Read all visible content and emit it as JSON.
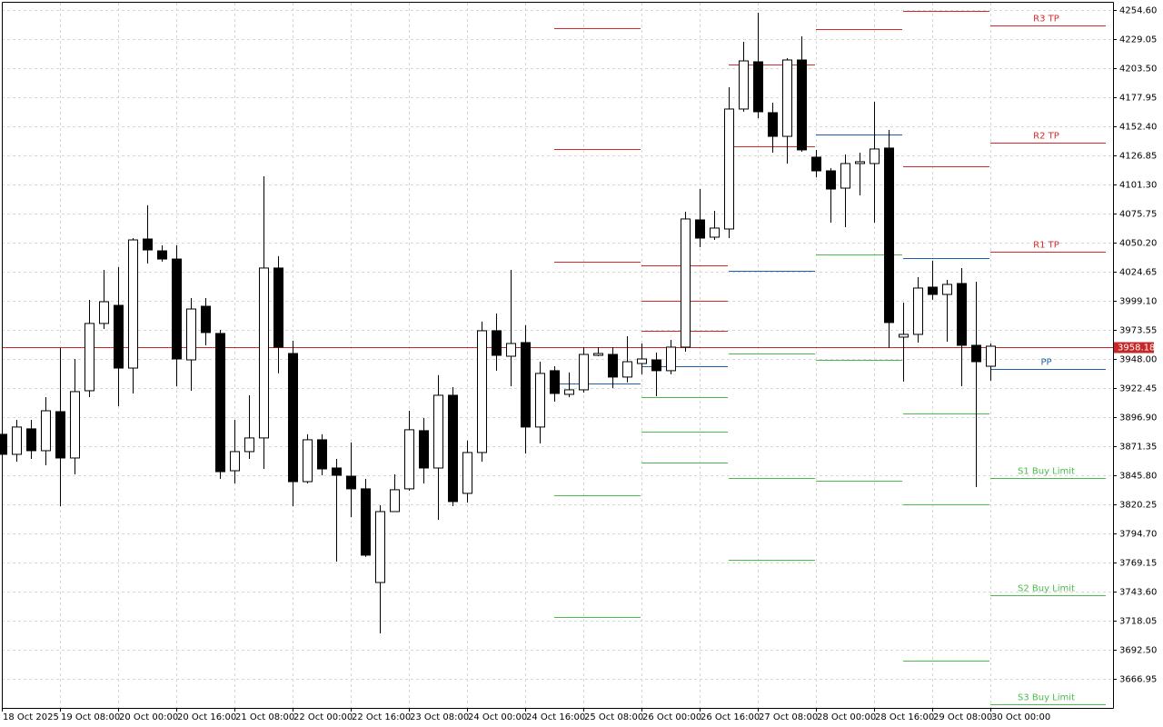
{
  "chart_data": {
    "type": "candlestick",
    "categories": [
      "18 Oct 2025",
      null,
      null,
      null,
      "19 Oct 08:00",
      null,
      null,
      null,
      "20 Oct 00:00",
      null,
      null,
      null,
      "20 Oct 16:00",
      null,
      null,
      null,
      "21 Oct 08:00",
      null,
      null,
      null,
      "22 Oct 00:00",
      null,
      null,
      null,
      "22 Oct 16:00",
      null,
      null,
      null,
      "23 Oct 08:00",
      null,
      null,
      null,
      "24 Oct 00:00",
      null,
      null,
      null,
      "24 Oct 16:00",
      null,
      null,
      null,
      "25 Oct 08:00",
      null,
      null,
      null,
      "26 Oct 00:00",
      null,
      null,
      null,
      "26 Oct 16:00",
      null,
      null,
      null,
      "27 Oct 08:00",
      null,
      null,
      null,
      "28 Oct 00:00",
      null,
      null,
      null,
      "28 Oct 16:00",
      null,
      null,
      null,
      "29 Oct 08:00",
      null,
      null,
      null,
      "30 Oct 00:00"
    ],
    "open": [
      3881.8,
      3864.2,
      3886.6,
      3867.4,
      3901.7,
      3861.0,
      3920.1,
      3979.2,
      3995.1,
      3940.0,
      4053.4,
      4043.0,
      4035.8,
      3947.2,
      3994.3,
      3970.4,
      3849.8,
      3866.6,
      3878.6,
      4027.9,
      3952.8,
      3840.2,
      3877.0,
      3852.2,
      3845.0,
      3833.9,
      3751.6,
      3813.9,
      3833.9,
      3885.0,
      3852.2,
      3916.1,
      3829.9,
      3865.8,
      3972.8,
      3950.4,
      3962.4,
      3888.2,
      3937.7,
      3916.9,
      3920.9,
      3951.2,
      3952.0,
      3932.1,
      3944.0,
      3947.2,
      3937.7,
      3958.4,
      4070.2,
      4055.0,
      4062.2,
      4167.6,
      4209.1,
      4164.4,
      4143.6,
      4210.7,
      4125.3,
      4113.3,
      4098.1,
      4119.7,
      4119.7,
      4133.3,
      3967.2,
      3969.6,
      4011.1,
      4004.7,
      4014.3,
      3960.0,
      3941.6
    ],
    "high": [
      3883.4,
      3894.5,
      3894.5,
      3914.5,
      3957.6,
      3948.0,
      3999.9,
      4026.3,
      4028.7,
      4054.2,
      4083.0,
      4047.8,
      4047.8,
      4001.5,
      4001.5,
      3973.6,
      3894.5,
      3916.1,
      4108.5,
      4038.3,
      3964.0,
      3881.8,
      3881.8,
      3860.2,
      3874.6,
      3842.6,
      3819.5,
      3846.6,
      3902.5,
      3896.1,
      3933.7,
      3923.3,
      3876.2,
      3980.8,
      3987.9,
      4026.3,
      3977.6,
      3945.6,
      3941.6,
      3936.1,
      3958.4,
      3958.4,
      3958.4,
      3968.0,
      3961.6,
      3953.6,
      3964.8,
      4077.4,
      4097.3,
      4078.2,
      4186.7,
      4226.7,
      4252.2,
      4173.2,
      4212.3,
      4231.5,
      4131.7,
      4115.7,
      4127.7,
      4129.3,
      4174.0,
      4149.2,
      3997.5,
      4019.9,
      4034.2,
      4017.5,
      4027.9,
      4015.9,
      3961.6
    ],
    "low": [
      3862.6,
      3857.8,
      3860.2,
      3854.6,
      3818.7,
      3846.6,
      3914.5,
      3974.4,
      3906.5,
      3917.7,
      4031.9,
      4033.5,
      3924.1,
      3920.1,
      3960.0,
      3842.6,
      3838.6,
      3860.2,
      3851.4,
      3935.3,
      3818.7,
      3838.6,
      3845.8,
      3770.0,
      3809.1,
      3774.0,
      3706.9,
      3813.9,
      3832.3,
      3838.6,
      3806.7,
      3818.7,
      3821.9,
      3857.8,
      3937.7,
      3924.1,
      3865.0,
      3873.8,
      3910.5,
      3914.5,
      3918.5,
      3950.4,
      3922.5,
      3927.3,
      3934.5,
      3915.3,
      3934.5,
      3954.4,
      4046.2,
      4052.6,
      4054.2,
      4165.2,
      4159.6,
      4129.3,
      4119.7,
      4130.1,
      4107.7,
      4067.8,
      4063.8,
      4091.7,
      4067.8,
      3957.6,
      3928.1,
      3962.4,
      3999.9,
      3963.2,
      3924.1,
      3835.5,
      3928.9
    ],
    "close": [
      3864.2,
      3888.2,
      3867.4,
      3902.5,
      3861.0,
      3919.3,
      3979.2,
      3998.3,
      3940.0,
      4052.6,
      4043.8,
      4035.8,
      3948.0,
      3991.9,
      3971.2,
      3849.0,
      3866.6,
      3878.6,
      4027.9,
      3958.4,
      3840.2,
      3877.0,
      3851.4,
      3845.8,
      3833.9,
      3775.6,
      3813.9,
      3833.1,
      3885.8,
      3852.2,
      3916.1,
      3822.7,
      3865.8,
      3972.8,
      3951.2,
      3961.6,
      3888.2,
      3935.3,
      3917.7,
      3920.9,
      3952.0,
      3952.8,
      3932.1,
      3945.6,
      3948.0,
      3937.7,
      3958.4,
      4071.0,
      4054.2,
      4063.0,
      4167.6,
      4209.9,
      4165.2,
      4143.6,
      4210.7,
      4131.7,
      4113.3,
      4097.3,
      4119.7,
      4121.3,
      4132.5,
      3980.0,
      3969.6,
      4010.3,
      4004.7,
      4013.5,
      3960.0,
      3945.6,
      3959.2
    ],
    "up_color": "#ffffff",
    "down_color": "#000000",
    "ylim": [
      3641.4,
      4261.0
    ],
    "yticks": [
      {
        "value": 4254.6,
        "label": "4254.60"
      },
      {
        "value": 4229.05,
        "label": "4229.05"
      },
      {
        "value": 4203.5,
        "label": "4203.50"
      },
      {
        "value": 4177.95,
        "label": "4177.95"
      },
      {
        "value": 4152.4,
        "label": "4152.40"
      },
      {
        "value": 4126.85,
        "label": "4126.85"
      },
      {
        "value": 4101.3,
        "label": "4101.30"
      },
      {
        "value": 4075.75,
        "label": "4075.75"
      },
      {
        "value": 4050.2,
        "label": "4050.20"
      },
      {
        "value": 4024.65,
        "label": "4024.65"
      },
      {
        "value": 3999.1,
        "label": "3999.10"
      },
      {
        "value": 3973.55,
        "label": "3973.55"
      },
      {
        "value": 3948.0,
        "label": "3948.00"
      },
      {
        "value": 3922.45,
        "label": "3922.45"
      },
      {
        "value": 3896.9,
        "label": "3896.90"
      },
      {
        "value": 3871.35,
        "label": "3871.35"
      },
      {
        "value": 3845.8,
        "label": "3845.80"
      },
      {
        "value": 3820.25,
        "label": "3820.25"
      },
      {
        "value": 3794.7,
        "label": "3794.70"
      },
      {
        "value": 3769.15,
        "label": "3769.15"
      },
      {
        "value": 3743.6,
        "label": "3743.60"
      },
      {
        "value": 3718.05,
        "label": "3718.05"
      },
      {
        "value": 3692.5,
        "label": "3692.50"
      },
      {
        "value": 3666.95,
        "label": "3666.95"
      }
    ],
    "grid": true,
    "current_price": 3958.18,
    "current_price_color": "#c62828",
    "pivot_segments": [
      {
        "from": 38,
        "to": 44,
        "lines": [
          {
            "value": 4238.6,
            "color": "#d42a2a"
          },
          {
            "value": 4132.5,
            "color": "#d42a2a"
          },
          {
            "value": 4033.5,
            "color": "#d42a2a"
          },
          {
            "value": 3926.5,
            "color": "#1f5fb0"
          },
          {
            "value": 3828.3,
            "color": "#4cbb4c"
          },
          {
            "value": 3721.3,
            "color": "#4cbb4c"
          }
        ]
      },
      {
        "from": 44,
        "to": 50,
        "lines": [
          {
            "value": 4030.3,
            "color": "#d42a2a"
          },
          {
            "value": 3999.1,
            "color": "#d42a2a"
          },
          {
            "value": 3972.8,
            "color": "#d42a2a"
          },
          {
            "value": 3941.6,
            "color": "#1f5fb0"
          },
          {
            "value": 3914.5,
            "color": "#4cbb4c"
          },
          {
            "value": 3884.2,
            "color": "#4cbb4c"
          },
          {
            "value": 3857.0,
            "color": "#4cbb4c"
          }
        ]
      },
      {
        "from": 50,
        "to": 56,
        "lines": [
          {
            "value": 4206.7,
            "color": "#d42a2a"
          },
          {
            "value": 4134.9,
            "color": "#d42a2a"
          },
          {
            "value": 4025.5,
            "color": "#1f5fb0"
          },
          {
            "value": 3952.8,
            "color": "#4cbb4c"
          },
          {
            "value": 3843.4,
            "color": "#4cbb4c"
          },
          {
            "value": 3771.6,
            "color": "#4cbb4c"
          }
        ]
      },
      {
        "from": 56,
        "to": 62,
        "lines": [
          {
            "value": 4237.8,
            "color": "#d42a2a"
          },
          {
            "value": 4145.2,
            "color": "#1f5fb0"
          },
          {
            "value": 4039.8,
            "color": "#4cbb4c"
          },
          {
            "value": 3947.2,
            "color": "#4cbb4c"
          },
          {
            "value": 3841.0,
            "color": "#4cbb4c"
          }
        ]
      },
      {
        "from": 62,
        "to": 68,
        "lines": [
          {
            "value": 4253.8,
            "color": "#d42a2a"
          },
          {
            "value": 4117.3,
            "color": "#d42a2a"
          },
          {
            "value": 4036.6,
            "color": "#1f5fb0"
          },
          {
            "value": 3900.1,
            "color": "#4cbb4c"
          },
          {
            "value": 3820.3,
            "color": "#4cbb4c"
          },
          {
            "value": 3683.0,
            "color": "#4cbb4c"
          }
        ]
      },
      {
        "from": 68,
        "to": 76,
        "lines": [
          {
            "value": 4241.0,
            "color": "#d42a2a",
            "label": "R3 TP"
          },
          {
            "value": 4138.0,
            "color": "#d42a2a",
            "label": "R2 TP"
          },
          {
            "value": 4042.2,
            "color": "#d42a2a",
            "label": "R1 TP"
          },
          {
            "value": 3939.2,
            "color": "#1f5fb0",
            "label": "PP"
          },
          {
            "value": 3843.4,
            "color": "#4cbb4c",
            "label": "S1 Buy Limit"
          },
          {
            "value": 3740.4,
            "color": "#4cbb4c",
            "label": "S2 Buy Limit"
          },
          {
            "value": 3644.6,
            "color": "#4cbb4c",
            "label": "S3 Buy Limit"
          }
        ]
      }
    ]
  }
}
